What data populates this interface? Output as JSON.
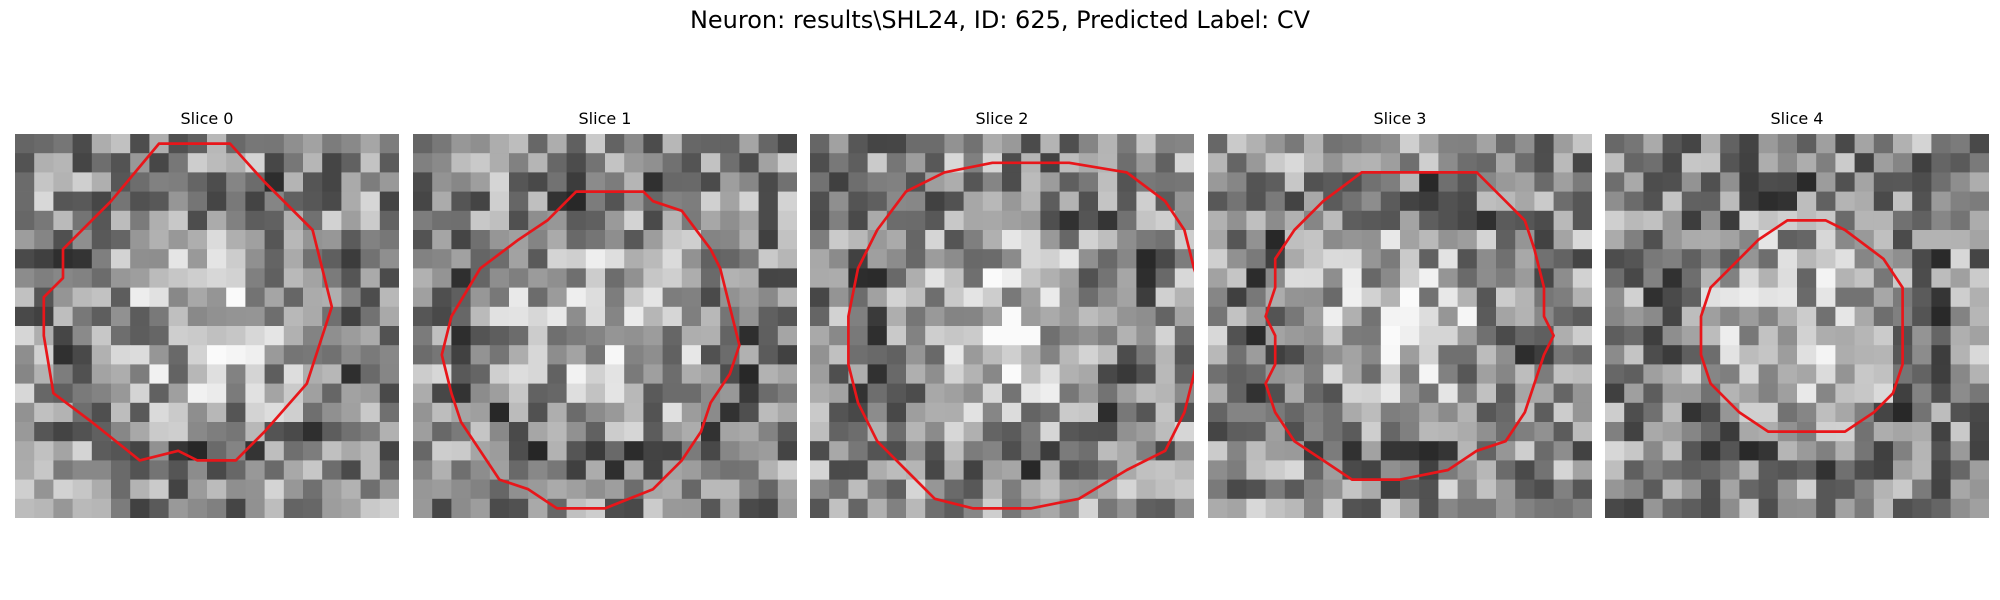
{
  "figure": {
    "suptitle": "Neuron: results\\SHL24, ID: 625, Predicted Label: CV"
  },
  "panels": [
    {
      "title": "Slice 0",
      "seed": 11,
      "center_brightness": 0.22,
      "contour": [
        [
          11.2,
          0.5
        ],
        [
          13.0,
          2.5
        ],
        [
          15.5,
          5.0
        ],
        [
          16.5,
          9.0
        ],
        [
          15.2,
          13.0
        ],
        [
          13.0,
          15.5
        ],
        [
          11.5,
          17.0
        ],
        [
          9.5,
          17.0
        ],
        [
          8.5,
          16.5
        ],
        [
          6.5,
          17.0
        ],
        [
          4.0,
          15.0
        ],
        [
          2.0,
          13.5
        ],
        [
          1.5,
          10.5
        ],
        [
          1.5,
          8.5
        ],
        [
          2.5,
          7.5
        ],
        [
          2.5,
          6.0
        ],
        [
          3.0,
          5.5
        ],
        [
          5.0,
          3.5
        ],
        [
          7.5,
          0.5
        ],
        [
          9.5,
          0.5
        ]
      ]
    },
    {
      "title": "Slice 1",
      "seed": 23,
      "center_brightness": 0.25,
      "contour": [
        [
          8.5,
          3.0
        ],
        [
          12.0,
          3.0
        ],
        [
          12.5,
          3.5
        ],
        [
          14.0,
          4.0
        ],
        [
          15.5,
          6.0
        ],
        [
          16.0,
          7.0
        ],
        [
          16.5,
          9.0
        ],
        [
          17.0,
          11.0
        ],
        [
          16.5,
          12.5
        ],
        [
          15.5,
          14.0
        ],
        [
          15.0,
          15.5
        ],
        [
          14.0,
          17.0
        ],
        [
          12.5,
          18.5
        ],
        [
          10.0,
          19.5
        ],
        [
          7.5,
          19.5
        ],
        [
          6.0,
          18.5
        ],
        [
          4.5,
          18.0
        ],
        [
          3.5,
          16.5
        ],
        [
          2.5,
          15.0
        ],
        [
          2.0,
          13.5
        ],
        [
          1.5,
          11.5
        ],
        [
          2.0,
          9.5
        ],
        [
          3.5,
          7.0
        ],
        [
          5.5,
          5.5
        ],
        [
          7.0,
          4.5
        ]
      ]
    },
    {
      "title": "Slice 2",
      "seed": 37,
      "center_brightness": 0.28,
      "contour": [
        [
          13.5,
          1.5
        ],
        [
          16.5,
          2.0
        ],
        [
          18.5,
          3.5
        ],
        [
          19.5,
          5.0
        ],
        [
          20.0,
          7.0
        ],
        [
          20.5,
          8.5
        ],
        [
          20.5,
          10.5
        ],
        [
          20.0,
          12.5
        ],
        [
          19.5,
          14.5
        ],
        [
          18.5,
          16.5
        ],
        [
          16.5,
          17.5
        ],
        [
          14.0,
          19.0
        ],
        [
          11.5,
          19.5
        ],
        [
          8.5,
          19.5
        ],
        [
          6.5,
          19.0
        ],
        [
          5.0,
          17.5
        ],
        [
          3.5,
          16.0
        ],
        [
          2.5,
          14.0
        ],
        [
          2.0,
          12.0
        ],
        [
          2.0,
          9.5
        ],
        [
          2.5,
          7.0
        ],
        [
          3.5,
          5.0
        ],
        [
          5.0,
          3.0
        ],
        [
          7.0,
          2.0
        ],
        [
          9.5,
          1.5
        ]
      ]
    },
    {
      "title": "Slice 3",
      "seed": 51,
      "center_brightness": 0.26,
      "contour": [
        [
          8.0,
          2.0
        ],
        [
          14.0,
          2.0
        ],
        [
          15.5,
          3.5
        ],
        [
          16.5,
          4.5
        ],
        [
          17.0,
          6.0
        ],
        [
          17.5,
          8.0
        ],
        [
          17.5,
          9.5
        ],
        [
          18.0,
          10.5
        ],
        [
          17.5,
          11.5
        ],
        [
          17.0,
          13.0
        ],
        [
          16.5,
          14.5
        ],
        [
          15.5,
          16.0
        ],
        [
          14.0,
          16.5
        ],
        [
          12.5,
          17.5
        ],
        [
          10.0,
          18.0
        ],
        [
          7.5,
          18.0
        ],
        [
          6.0,
          17.0
        ],
        [
          4.5,
          16.0
        ],
        [
          3.5,
          14.5
        ],
        [
          3.0,
          13.0
        ],
        [
          3.5,
          12.0
        ],
        [
          3.5,
          10.5
        ],
        [
          3.0,
          9.5
        ],
        [
          3.5,
          8.0
        ],
        [
          3.5,
          6.5
        ],
        [
          4.5,
          5.0
        ],
        [
          6.0,
          3.5
        ]
      ]
    },
    {
      "title": "Slice 4",
      "seed": 67,
      "center_brightness": 0.2,
      "contour": [
        [
          9.5,
          4.5
        ],
        [
          11.5,
          4.5
        ],
        [
          12.5,
          5.0
        ],
        [
          14.5,
          6.5
        ],
        [
          15.5,
          8.0
        ],
        [
          15.5,
          10.0
        ],
        [
          15.5,
          12.0
        ],
        [
          15.0,
          13.5
        ],
        [
          14.0,
          14.5
        ],
        [
          12.5,
          15.5
        ],
        [
          10.5,
          15.5
        ],
        [
          8.5,
          15.5
        ],
        [
          7.0,
          14.5
        ],
        [
          5.5,
          13.0
        ],
        [
          5.0,
          11.5
        ],
        [
          5.0,
          9.5
        ],
        [
          5.5,
          8.0
        ],
        [
          6.5,
          7.0
        ],
        [
          8.0,
          5.5
        ]
      ]
    }
  ],
  "style": {
    "contour_color": "#e8161a"
  }
}
